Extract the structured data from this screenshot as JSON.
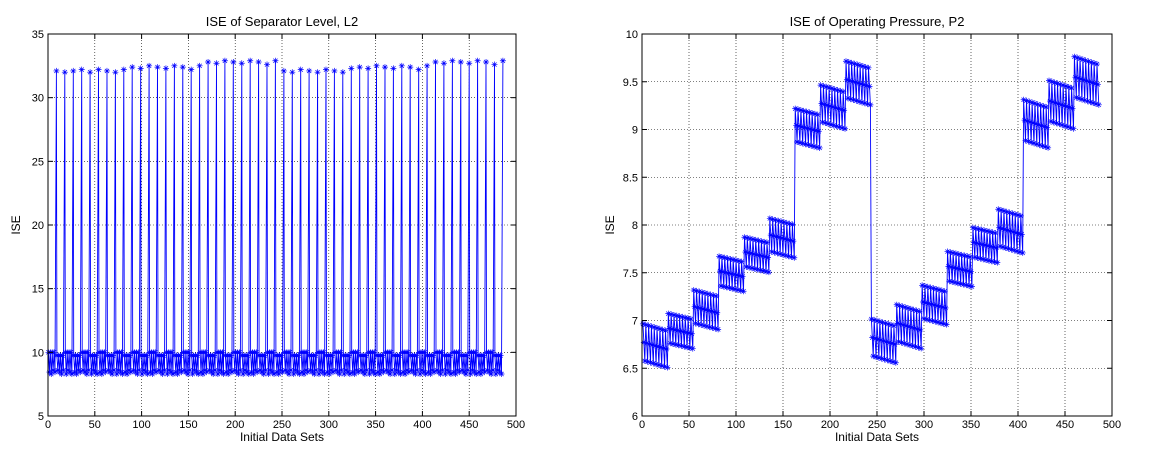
{
  "chart_data": [
    {
      "type": "line",
      "title": "ISE of Separator Level, L2",
      "xlabel": "Initial Data Sets",
      "ylabel": "ISE",
      "xlim": [
        0,
        500
      ],
      "ylim": [
        5,
        35
      ],
      "xticks": [
        0,
        50,
        100,
        150,
        200,
        250,
        300,
        350,
        400,
        450,
        500
      ],
      "yticks": [
        5,
        10,
        15,
        20,
        25,
        30,
        35
      ],
      "grid": true,
      "line_color": "#0000ff",
      "marker": "star",
      "series": [
        {
          "note_pattern": "repeating blocks of 9 points; 8 points alternate between about 8.3 and 10.0, 9th point about 32",
          "peak_x": [
            9,
            18,
            27,
            36,
            45,
            54,
            63,
            72,
            81,
            90,
            99,
            108,
            117,
            126,
            135,
            144,
            153,
            162,
            171,
            180,
            189,
            198,
            207,
            216,
            225,
            234,
            243,
            252,
            261,
            270,
            279,
            288,
            297,
            306,
            315,
            324,
            333,
            342,
            351,
            360,
            369,
            378,
            387,
            396,
            405,
            414,
            423,
            432,
            441,
            450,
            459,
            468,
            477,
            486
          ],
          "peak_y": [
            32.1,
            32.0,
            32.1,
            32.2,
            32.0,
            32.2,
            32.1,
            32.0,
            32.2,
            32.4,
            32.3,
            32.5,
            32.4,
            32.3,
            32.5,
            32.4,
            32.2,
            32.5,
            32.8,
            32.7,
            32.9,
            32.8,
            32.7,
            32.9,
            32.8,
            32.6,
            32.9,
            32.1,
            32.0,
            32.2,
            32.1,
            32.0,
            32.2,
            32.1,
            32.0,
            32.3,
            32.4,
            32.3,
            32.5,
            32.4,
            32.3,
            32.5,
            32.4,
            32.2,
            32.5,
            32.8,
            32.7,
            32.9,
            32.8,
            32.7,
            32.9,
            32.8,
            32.6,
            32.9
          ],
          "low_level": 8.3,
          "high_level": 10.0
        }
      ]
    },
    {
      "type": "line",
      "title": "ISE of Operating Pressure, P2",
      "xlabel": "Initial Data Sets",
      "ylabel": "ISE",
      "xlim": [
        0,
        500
      ],
      "ylim": [
        6,
        10
      ],
      "xticks": [
        0,
        50,
        100,
        150,
        200,
        250,
        300,
        350,
        400,
        450,
        500
      ],
      "yticks": [
        6,
        6.5,
        7,
        7.5,
        8,
        8.5,
        9,
        9.5,
        10
      ],
      "grid": true,
      "line_color": "#0000ff",
      "marker": "star",
      "series": [
        {
          "note_pattern": "groups of 27 points forming a slanted cluster; each group spans ~0.45 in y",
          "group_start_x": [
            1,
            28,
            55,
            82,
            109,
            136,
            163,
            190,
            217,
            244,
            271,
            298,
            325,
            352,
            379,
            406,
            433,
            460
          ],
          "group_top_y": [
            7.0,
            7.1,
            7.35,
            7.7,
            7.9,
            8.1,
            9.25,
            9.5,
            9.75,
            7.05,
            7.2,
            7.4,
            7.75,
            8.0,
            8.2,
            9.35,
            9.55,
            9.8
          ],
          "group_bottom_y": [
            6.5,
            6.7,
            6.9,
            7.3,
            7.5,
            7.65,
            8.8,
            9.0,
            9.25,
            6.55,
            6.7,
            6.95,
            7.35,
            7.6,
            7.7,
            8.8,
            9.0,
            9.25
          ]
        }
      ]
    }
  ]
}
